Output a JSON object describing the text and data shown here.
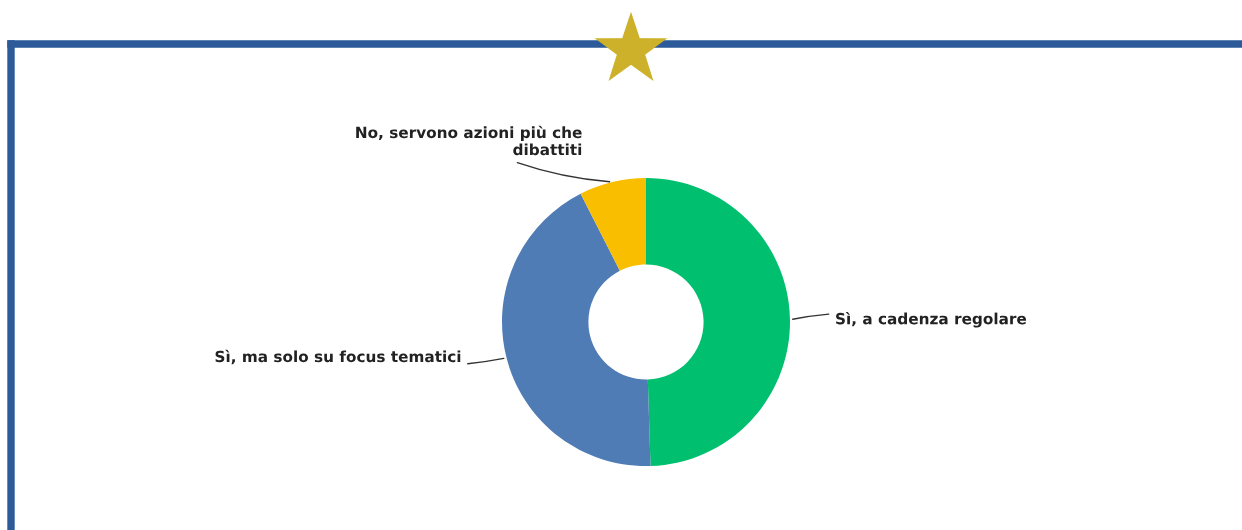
{
  "chart_data": {
    "type": "donut",
    "categories": [
      "Sì, a cadenza regolare",
      "Sì, ma solo su focus tematici",
      "No, servono azioni più che dibattiti"
    ],
    "values": [
      49.5,
      43,
      7.5
    ],
    "colors": [
      "#00bf6f",
      "#507cb6",
      "#f9be00"
    ],
    "legend": false
  }
}
